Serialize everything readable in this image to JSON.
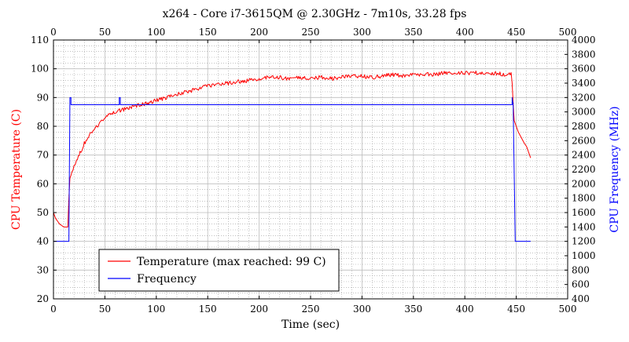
{
  "chart_data": {
    "type": "line",
    "title": "x264 - Core i7-3615QM @ 2.30GHz - 7m10s, 33.28 fps",
    "xlabel": "Time (sec)",
    "ylabel_left": "CPU Temperature (C)",
    "ylabel_right": "CPU Frequency (MHz)",
    "xlim": [
      0,
      500
    ],
    "ylim_left": [
      20,
      110
    ],
    "ylim_right": [
      400,
      4000
    ],
    "x_ticks": [
      "0",
      "50",
      "100",
      "150",
      "200",
      "250",
      "300",
      "350",
      "400",
      "450",
      "500"
    ],
    "left_ticks": [
      "20",
      "30",
      "40",
      "50",
      "60",
      "70",
      "80",
      "90",
      "100",
      "110"
    ],
    "right_ticks": [
      "400",
      "600",
      "800",
      "1000",
      "1200",
      "1400",
      "1600",
      "1800",
      "2000",
      "2200",
      "2400",
      "2600",
      "2800",
      "3000",
      "3200",
      "3400",
      "3600",
      "3800",
      "4000"
    ],
    "grid": true,
    "legend_position": "lower-left",
    "series": [
      {
        "name": "Temperature (max reached: 99 C)",
        "axis": "left",
        "color": "#ff0000",
        "x": [
          0,
          2,
          4,
          6,
          8,
          10,
          12,
          14,
          15,
          16,
          18,
          20,
          25,
          30,
          35,
          40,
          45,
          50,
          55,
          60,
          65,
          70,
          75,
          80,
          85,
          90,
          95,
          100,
          110,
          120,
          130,
          140,
          150,
          160,
          170,
          180,
          190,
          200,
          210,
          220,
          230,
          240,
          250,
          260,
          270,
          280,
          290,
          300,
          310,
          320,
          330,
          340,
          350,
          360,
          370,
          380,
          390,
          400,
          410,
          420,
          430,
          440,
          445,
          446,
          447,
          448,
          450,
          452,
          455,
          458,
          460,
          462,
          464
        ],
        "y": [
          50,
          48,
          47,
          46,
          45.5,
          45,
          45,
          45,
          55,
          62,
          64,
          66,
          70,
          74,
          77,
          79,
          81,
          83,
          84,
          85,
          85.5,
          86,
          86.5,
          87,
          87.5,
          88,
          88.5,
          89,
          90,
          91,
          92,
          93,
          94,
          94.5,
          95,
          95.5,
          96,
          96.5,
          97,
          97,
          96.5,
          97,
          96.5,
          97,
          96.5,
          97,
          97.5,
          97.5,
          97,
          97.5,
          98,
          97.5,
          98,
          98,
          98,
          98.5,
          98.5,
          98.5,
          98.5,
          98.5,
          98.5,
          98,
          98,
          95,
          88,
          82,
          80,
          78,
          76,
          74,
          73,
          71,
          69
        ]
      },
      {
        "name": "Frequency",
        "axis": "right",
        "color": "#0000ff",
        "x": [
          0,
          15,
          16,
          17,
          17,
          64,
          64,
          65,
          65,
          446,
          446,
          447,
          449,
          464
        ],
        "y": [
          1200,
          1200,
          3200,
          3200,
          3100,
          3100,
          3200,
          3200,
          3100,
          3100,
          3200,
          3100,
          1200,
          1200
        ]
      }
    ]
  }
}
